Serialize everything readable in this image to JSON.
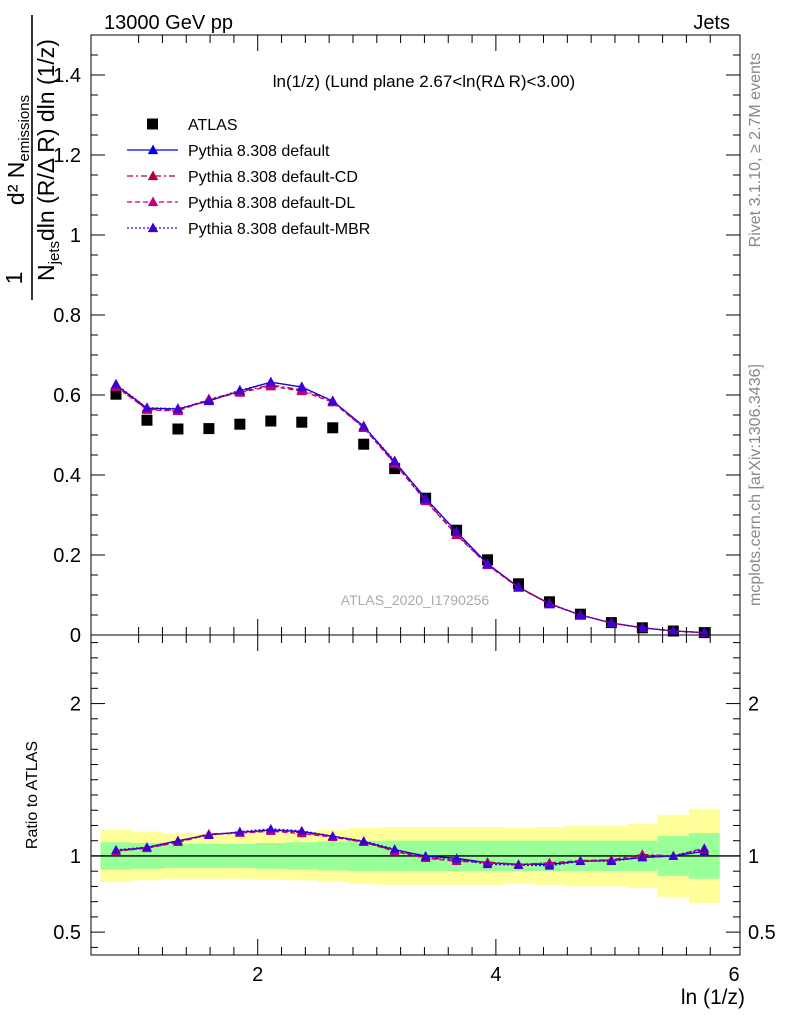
{
  "header": {
    "energy_label": "13000 GeV pp",
    "process_label": "Jets"
  },
  "side_labels": {
    "rivet": "Rivet 3.1.10, ≥ 2.7M events",
    "mcplots": "mcplots.cern.ch [arXiv:1306.3436]"
  },
  "plot_title": "ln(1/z)  (Lund plane 2.67<ln(RΔ R)<3.00)",
  "watermark": "ATLAS_2020_I1790256",
  "y_label_upper": {
    "numerator": "d² N",
    "numerator_sub": "emissions",
    "denominator": "N",
    "denominator_sub": "jets",
    "denominator_rest": "dln (R/Δ R) dln (1/z)",
    "prefix": "1"
  },
  "y_label_lower": "Ratio to ATLAS",
  "x_label": "ln (1/z)",
  "legend": [
    {
      "label": "ATLAS",
      "color": "#000000",
      "marker": "square",
      "line": "none"
    },
    {
      "label": "Pythia 8.308 default",
      "color": "#0000ee",
      "marker": "triangle",
      "line": "solid"
    },
    {
      "label": "Pythia 8.308 default-CD",
      "color": "#b0003a",
      "marker": "triangle",
      "line": "dashdot"
    },
    {
      "label": "Pythia 8.308 default-DL",
      "color": "#c0007a",
      "marker": "triangle",
      "line": "dashed"
    },
    {
      "label": "Pythia 8.308 default-MBR",
      "color": "#4000d0",
      "marker": "triangle",
      "line": "dotted"
    }
  ],
  "chart_data": [
    {
      "type": "scatter",
      "panel": "main",
      "xlim": [
        0.6,
        6.05
      ],
      "ylim": [
        0,
        1.5
      ],
      "yticks": [
        "0",
        "0.2",
        "0.4",
        "0.6",
        "0.8",
        "1",
        "1.2",
        "1.4"
      ],
      "xticks": [
        "2",
        "4",
        "6"
      ],
      "x": [
        0.81,
        1.07,
        1.33,
        1.59,
        1.85,
        2.11,
        2.37,
        2.63,
        2.89,
        3.15,
        3.41,
        3.67,
        3.93,
        4.19,
        4.45,
        4.71,
        4.97,
        5.23,
        5.49,
        5.75
      ],
      "series": [
        {
          "name": "ATLAS",
          "values": [
            0.602,
            0.537,
            0.515,
            0.516,
            0.527,
            0.535,
            0.532,
            0.518,
            0.477,
            0.416,
            0.342,
            0.262,
            0.188,
            0.128,
            0.083,
            0.052,
            0.031,
            0.018,
            0.01,
            0.006
          ]
        },
        {
          "name": "Pythia 8.308 default",
          "values": [
            0.625,
            0.567,
            0.565,
            0.585,
            0.61,
            0.632,
            0.62,
            0.585,
            0.522,
            0.433,
            0.342,
            0.258,
            0.178,
            0.12,
            0.078,
            0.05,
            0.03,
            0.018,
            0.01,
            0.006
          ]
        },
        {
          "name": "Pythia 8.308 default-CD",
          "values": [
            0.62,
            0.565,
            0.562,
            0.59,
            0.608,
            0.625,
            0.613,
            0.585,
            0.518,
            0.43,
            0.336,
            0.252,
            0.176,
            0.119,
            0.079,
            0.05,
            0.03,
            0.018,
            0.01,
            0.006
          ]
        },
        {
          "name": "Pythia 8.308 default-DL",
          "values": [
            0.622,
            0.563,
            0.56,
            0.588,
            0.606,
            0.622,
            0.61,
            0.582,
            0.518,
            0.428,
            0.335,
            0.25,
            0.175,
            0.118,
            0.078,
            0.05,
            0.03,
            0.018,
            0.01,
            0.006
          ]
        },
        {
          "name": "Pythia 8.308 default-MBR",
          "values": [
            0.627,
            0.568,
            0.566,
            0.586,
            0.612,
            0.632,
            0.62,
            0.585,
            0.522,
            0.435,
            0.34,
            0.258,
            0.177,
            0.12,
            0.077,
            0.05,
            0.03,
            0.018,
            0.01,
            0.006
          ]
        }
      ]
    },
    {
      "type": "line",
      "panel": "ratio",
      "ylabel": "Ratio to ATLAS",
      "xlabel": "ln (1/z)",
      "xlim": [
        0.6,
        6.05
      ],
      "ylim": [
        0.35,
        2.45
      ],
      "yticks": [
        "0.5",
        "1",
        "2"
      ],
      "xticks": [
        "2",
        "4",
        "6"
      ],
      "x": [
        0.81,
        1.07,
        1.33,
        1.59,
        1.85,
        2.11,
        2.37,
        2.63,
        2.89,
        3.15,
        3.41,
        3.67,
        3.93,
        4.19,
        4.45,
        4.71,
        4.97,
        5.23,
        5.49,
        5.75
      ],
      "band_edges": [
        0.68,
        0.94,
        1.2,
        1.46,
        1.72,
        1.98,
        2.24,
        2.5,
        2.76,
        3.02,
        3.28,
        3.54,
        3.8,
        4.06,
        4.32,
        4.58,
        4.84,
        5.1,
        5.36,
        5.62,
        5.88
      ],
      "band_inner": [
        0.09,
        0.085,
        0.08,
        0.08,
        0.08,
        0.085,
        0.09,
        0.095,
        0.1,
        0.1,
        0.1,
        0.1,
        0.1,
        0.1,
        0.1,
        0.1,
        0.1,
        0.1,
        0.13,
        0.15
      ],
      "band_outer": [
        0.17,
        0.16,
        0.15,
        0.15,
        0.15,
        0.155,
        0.16,
        0.17,
        0.185,
        0.19,
        0.19,
        0.19,
        0.19,
        0.185,
        0.19,
        0.2,
        0.2,
        0.21,
        0.27,
        0.31
      ],
      "series": [
        {
          "name": "Pythia 8.308 default",
          "values": [
            1.035,
            1.055,
            1.1,
            1.14,
            1.155,
            1.17,
            1.16,
            1.13,
            1.095,
            1.04,
            1.0,
            0.985,
            0.955,
            0.945,
            0.945,
            0.965,
            0.97,
            0.99,
            1.0,
            1.03
          ]
        },
        {
          "name": "Pythia 8.308 default-CD",
          "values": [
            1.03,
            1.052,
            1.092,
            1.145,
            1.152,
            1.168,
            1.153,
            1.128,
            1.09,
            1.035,
            0.99,
            0.97,
            0.96,
            0.945,
            0.955,
            0.965,
            0.975,
            1.01,
            1.0,
            1.04
          ]
        },
        {
          "name": "Pythia 8.308 default-DL",
          "values": [
            1.032,
            1.05,
            1.09,
            1.14,
            1.15,
            1.162,
            1.147,
            1.123,
            1.09,
            1.03,
            0.985,
            0.965,
            0.955,
            0.94,
            0.955,
            0.97,
            0.975,
            1.0,
            1.0,
            1.05
          ]
        },
        {
          "name": "Pythia 8.308 default-MBR",
          "values": [
            1.04,
            1.058,
            1.1,
            1.136,
            1.16,
            1.178,
            1.165,
            1.13,
            1.098,
            1.045,
            0.995,
            0.98,
            0.945,
            0.94,
            0.935,
            0.965,
            0.965,
            0.99,
            1.0,
            1.05
          ]
        }
      ]
    }
  ]
}
